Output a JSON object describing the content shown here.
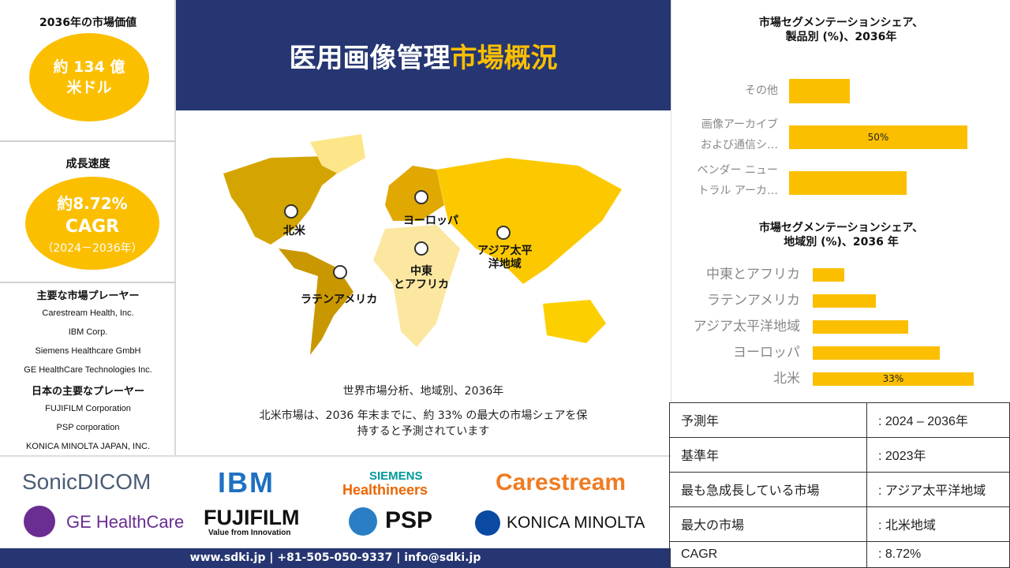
{
  "left": {
    "market_value_title": "2036年の市場価値",
    "market_value_line1": "約 134 億",
    "market_value_line2": "米ドル",
    "growth_title": "成長速度",
    "growth_line1": "約8.72%",
    "growth_line2": "CAGR",
    "growth_line3": "（2024－2036年）",
    "players_title": "主要な市場プレーヤー",
    "players": [
      "Carestream Health, Inc.",
      "IBM Corp.",
      "Siemens Healthcare GmbH",
      "GE HealthCare Technologies Inc."
    ],
    "japan_players_title": "日本の主要なプレーヤー",
    "japan_players": [
      "FUJIFILM Corporation",
      "PSP corporation",
      "KONICA MINOLTA JAPAN, INC."
    ]
  },
  "header": {
    "title_white": "医用画像管理",
    "title_yellow": "市場概況"
  },
  "map": {
    "labels": {
      "na": "北米",
      "eu": "ヨーロッパ",
      "apac_1": "アジア太平",
      "apac_2": "洋地域",
      "mea_1": "中東",
      "mea_2": "とアフリカ",
      "latam": "ラテンアメリカ"
    },
    "caption": "世界市場分析、地域別、2036年",
    "note_1": "北米市場は、2036 年末までに、約 33% の最大の市場シェアを保",
    "note_2": "持すると予測されています"
  },
  "logos": [
    "SonicDICOM",
    "IBM",
    "SIEMENS",
    "Healthineers",
    "Carestream",
    "GE HealthCare",
    "FUJIFILM",
    "Value from Innovation",
    "PSP",
    "KONICA MINOLTA"
  ],
  "footer": "www.sdki.jp | +81-505-050-9337 | info@sdki.jp",
  "colors": {
    "navy": "#263672",
    "accent": "#fbbf00"
  },
  "chart_data": [
    {
      "type": "bar",
      "orientation": "horizontal",
      "title_1": "市場セグメンテーションシェア、",
      "title_2": "製品別 (%)、2036年",
      "categories": [
        [
          "その他",
          ""
        ],
        [
          "画像アーカイブ",
          "および通信シ…"
        ],
        [
          "ベンダー ニュー",
          "トラル アーカ…"
        ]
      ],
      "values": [
        17,
        50,
        33
      ],
      "data_labels": [
        "",
        "50%",
        ""
      ],
      "xlim": [
        0,
        50
      ]
    },
    {
      "type": "bar",
      "orientation": "horizontal",
      "title_1": "市場セグメンテーションシェア、",
      "title_2": "地域別 (%)、2036 年",
      "categories": [
        "中東とアフリカ",
        "ラテンアメリカ",
        "アジア太平洋地域",
        "ヨーロッパ",
        "北米"
      ],
      "values": [
        6.5,
        13,
        19.5,
        26,
        33
      ],
      "data_labels": [
        "",
        "",
        "",
        "",
        "33%"
      ],
      "xlim": [
        0,
        33
      ]
    }
  ],
  "table": [
    {
      "k": "予測年",
      "v": ": 2024 – 2036年"
    },
    {
      "k": "基準年",
      "v": ": 2023年"
    },
    {
      "k": "最も急成長している市場",
      "v": ": アジア太平洋地域"
    },
    {
      "k": "最大の市場",
      "v": ": 北米地域"
    },
    {
      "k": "CAGR",
      "v": ": 8.72%"
    }
  ]
}
